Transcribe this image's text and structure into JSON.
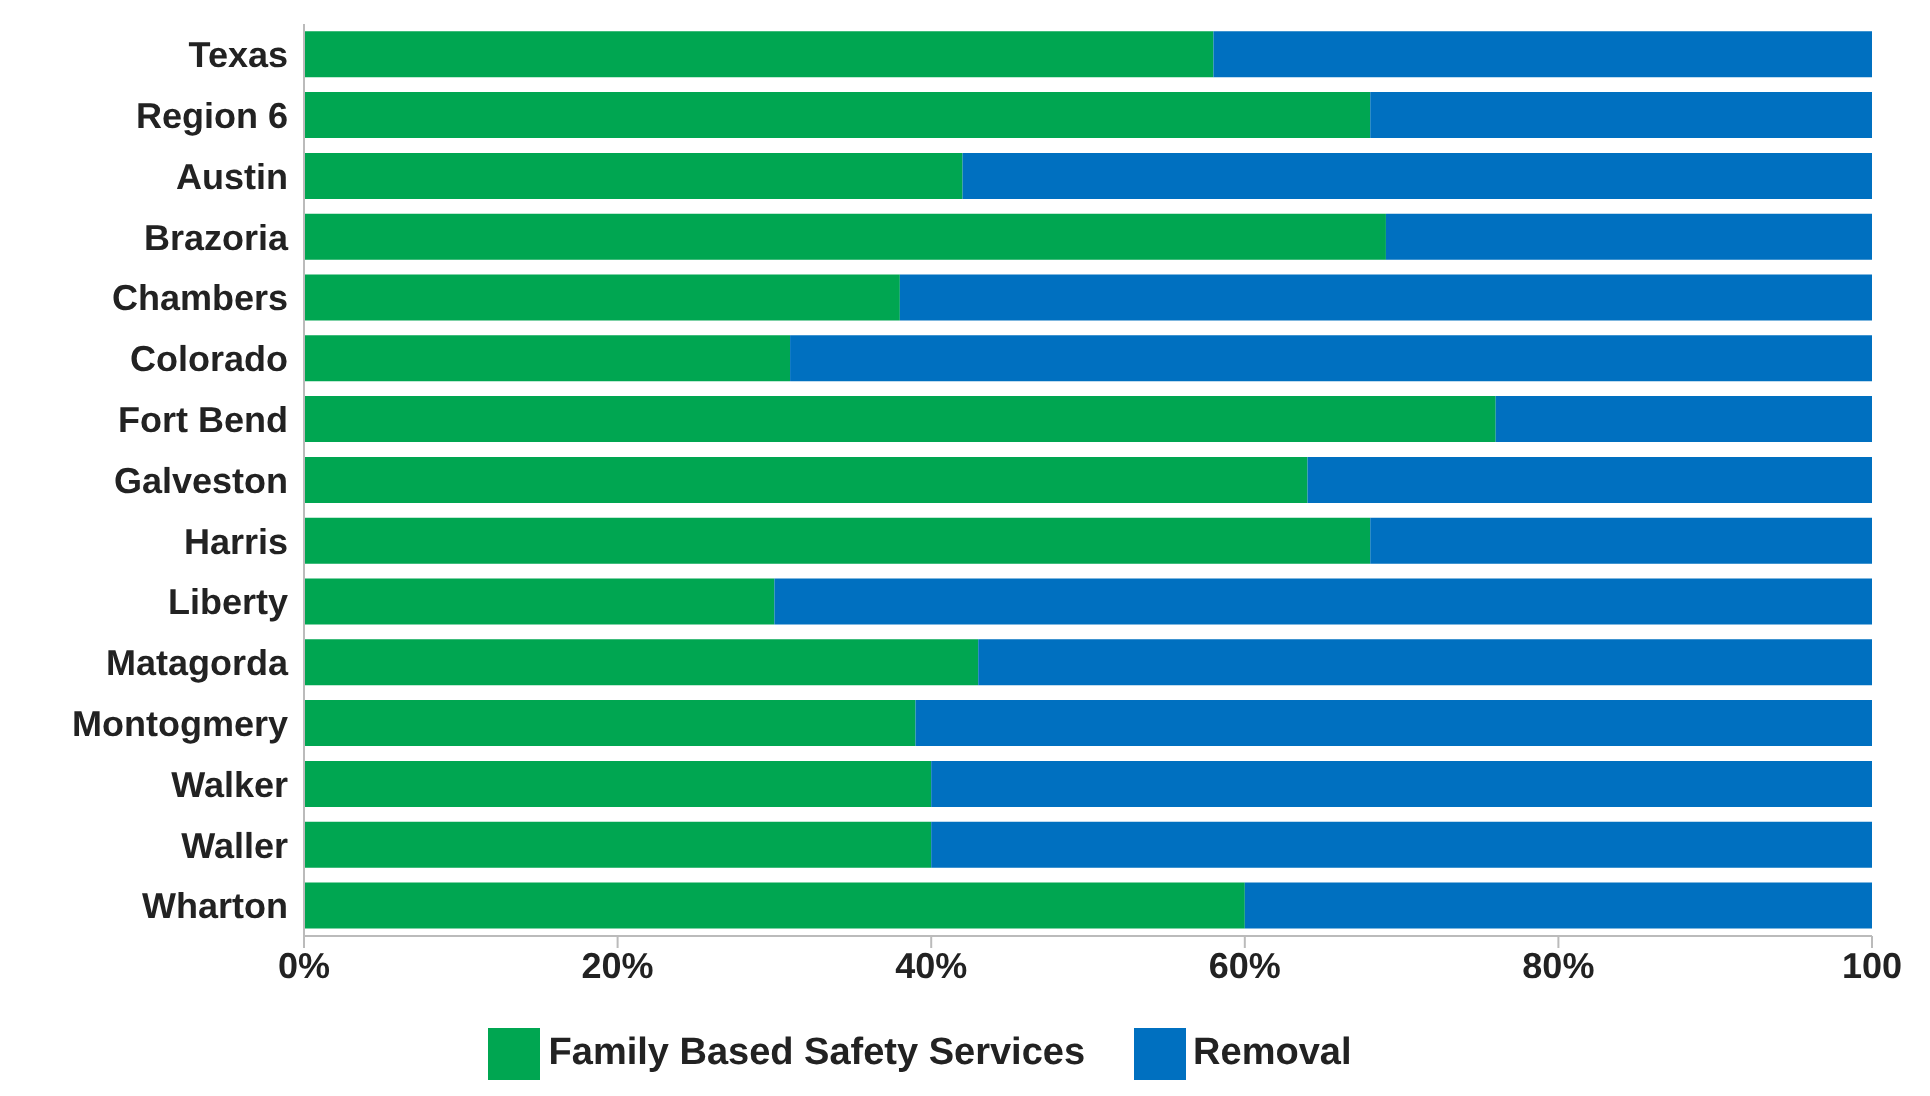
{
  "chart_data": {
    "type": "bar",
    "orientation": "horizontal",
    "stacked": true,
    "categories": [
      "Texas",
      "Region 6",
      "Austin",
      "Brazoria",
      "Chambers",
      "Colorado",
      "Fort Bend",
      "Galveston",
      "Harris",
      "Liberty",
      "Matagorda",
      "Montogmery",
      "Walker",
      "Waller",
      "Wharton"
    ],
    "series": [
      {
        "name": "Family Based Safety Services",
        "color": "#00a651",
        "values": [
          58,
          68,
          42,
          69,
          38,
          31,
          76,
          64,
          68,
          30,
          43,
          39,
          40,
          40,
          60
        ]
      },
      {
        "name": "Removal",
        "color": "#0070c0",
        "values": [
          42,
          32,
          58,
          31,
          62,
          69,
          24,
          36,
          32,
          70,
          57,
          61,
          60,
          60,
          40
        ]
      }
    ],
    "xlim": [
      0,
      100
    ],
    "xticks": [
      {
        "value": 0,
        "label": "0%"
      },
      {
        "value": 20,
        "label": "20%"
      },
      {
        "value": 40,
        "label": "40%"
      },
      {
        "value": 60,
        "label": "60%"
      },
      {
        "value": 80,
        "label": "80%"
      },
      100
    ],
    "grid": false,
    "legend": "bottom"
  }
}
